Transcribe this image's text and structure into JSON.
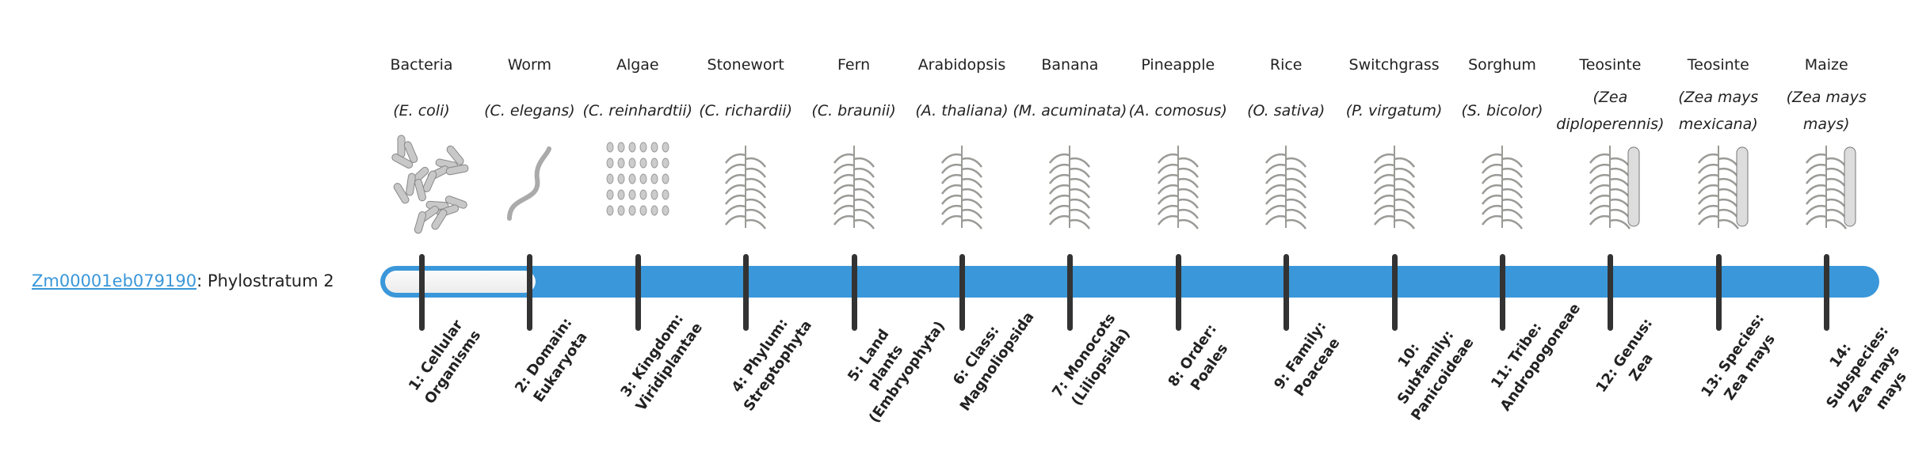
{
  "gene": {
    "id": "Zm00001eb079190",
    "suffix": ": Phylostratum 2"
  },
  "progress": {
    "current_stratum": 2,
    "total_strata": 14
  },
  "colors": {
    "accent": "#3a97d9",
    "tick": "#333333"
  },
  "organisms": [
    {
      "common": "Bacteria",
      "sci": "(E. coli)",
      "icon": "bacteria-illustration"
    },
    {
      "common": "Worm",
      "sci": "(C. elegans)",
      "icon": "worm-illustration"
    },
    {
      "common": "Algae",
      "sci": "(C. reinhardtii)",
      "icon": "algae-illustration"
    },
    {
      "common": "Stonewort",
      "sci": "(C. richardii)",
      "icon": "stonewort-illustration"
    },
    {
      "common": "Fern",
      "sci": "(C. braunii)",
      "icon": "fern-illustration"
    },
    {
      "common": "Arabidopsis",
      "sci": "(A. thaliana)",
      "icon": "arabidopsis-illustration"
    },
    {
      "common": "Banana",
      "sci": "(M. acuminata)",
      "icon": "banana-illustration"
    },
    {
      "common": "Pineapple",
      "sci": "(A. comosus)",
      "icon": "pineapple-illustration"
    },
    {
      "common": "Rice",
      "sci": "(O. sativa)",
      "icon": "rice-illustration"
    },
    {
      "common": "Switchgrass",
      "sci": "(P. virgatum)",
      "icon": "switchgrass-illustration"
    },
    {
      "common": "Sorghum",
      "sci": "(S. bicolor)",
      "icon": "sorghum-illustration"
    },
    {
      "common": "Teosinte",
      "sci": "(Zea diploperennis)",
      "icon": "teosinte-illustration"
    },
    {
      "common": "Teosinte",
      "sci": "(Zea mays mexicana)",
      "icon": "teosinte-illustration"
    },
    {
      "common": "Maize",
      "sci": "(Zea mays mays)",
      "icon": "maize-illustration"
    }
  ],
  "strata": [
    "1: Cellular Organisms",
    "2: Domain: Eukaryota",
    "3: Kingdom: Viridiplantae",
    "4: Phylum: Streptophyta",
    "5: Land plants (Embryophyta)",
    "6: Class: Magnoliopsida",
    "7: Monocots (Liliopsida)",
    "8: Order: Poales",
    "9: Family: Poaceae",
    "10: Subfamily: Panicoideae",
    "11: Tribe: Andropogoneae",
    "12: Genus: Zea",
    "13: Species: Zea mays",
    "14: Subspecies: Zea mays mays"
  ]
}
